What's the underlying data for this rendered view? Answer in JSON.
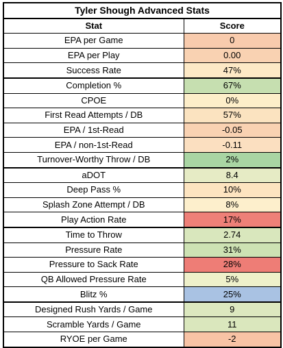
{
  "title": "Tyler Shough Advanced Stats",
  "columns": [
    "Stat",
    "Score"
  ],
  "rows": [
    {
      "stat": "EPA per Game",
      "score": "0",
      "color": "#f8cbad"
    },
    {
      "stat": "EPA per Play",
      "score": "0.00",
      "color": "#f9d2b2"
    },
    {
      "stat": "Success Rate",
      "score": "47%",
      "color": "#fde9c6"
    },
    {
      "stat": "Completion %",
      "score": "67%",
      "color": "#c6dfb0"
    },
    {
      "stat": "CPOE",
      "score": "0%",
      "color": "#fdeec9"
    },
    {
      "stat": "First Read Attempts / DB",
      "score": "57%",
      "color": "#fbe3c0"
    },
    {
      "stat": "EPA / 1st-Read",
      "score": "-0.05",
      "color": "#f9d2b2"
    },
    {
      "stat": "EPA / non-1st-Read",
      "score": "-0.11",
      "color": "#fbdfc0"
    },
    {
      "stat": "Turnover-Worthy Throw / DB",
      "score": "2%",
      "color": "#a9d5a3"
    },
    {
      "stat": "aDOT",
      "score": "8.4",
      "color": "#e6ebc5"
    },
    {
      "stat": "Deep Pass %",
      "score": "10%",
      "color": "#fde4c0"
    },
    {
      "stat": "Splash Zone Attempt / DB",
      "score": "8%",
      "color": "#fdefcc"
    },
    {
      "stat": "Play Action Rate",
      "score": "17%",
      "color": "#ee8078"
    },
    {
      "stat": "Time to Throw",
      "score": "2.74",
      "color": "#d9e7bd"
    },
    {
      "stat": "Pressure Rate",
      "score": "31%",
      "color": "#cde2b3"
    },
    {
      "stat": "Pressure to Sack Rate",
      "score": "28%",
      "color": "#ee7d76"
    },
    {
      "stat": "QB Allowed Pressure Rate",
      "score": "5%",
      "color": "#eef0ca"
    },
    {
      "stat": "Blitz %",
      "score": "25%",
      "color": "#a9c2e3"
    },
    {
      "stat": "Designed Rush Yards / Game",
      "score": "9",
      "color": "#dce8bf"
    },
    {
      "stat": "Scramble Yards / Game",
      "score": "11",
      "color": "#dae7bd"
    },
    {
      "stat": "RYOE per Game",
      "score": "-2",
      "color": "#f8c3a5"
    }
  ],
  "group_breaks_after": [
    2,
    8,
    12,
    17
  ]
}
